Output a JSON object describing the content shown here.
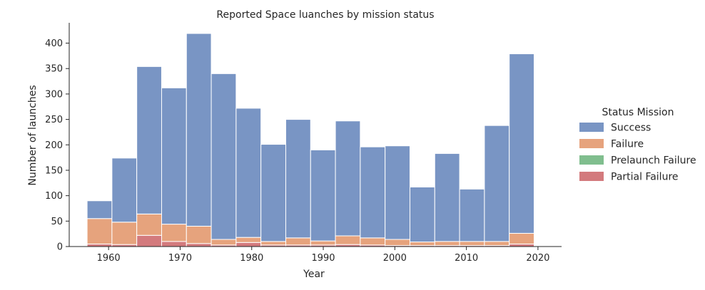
{
  "chart_data": {
    "type": "bar",
    "stacked": true,
    "title": "Reported Space luanches by mission status",
    "xlabel": "Year",
    "ylabel": "Number of launches",
    "xlim": [
      1954.5,
      2023.3
    ],
    "ylim": [
      0,
      440
    ],
    "x_ticks": [
      1960,
      1970,
      1980,
      1990,
      2000,
      2010,
      2020
    ],
    "y_ticks": [
      0,
      50,
      100,
      150,
      200,
      250,
      300,
      350,
      400
    ],
    "bin_edges": [
      1957,
      1960.47,
      1963.94,
      1967.41,
      1970.88,
      1974.35,
      1977.82,
      1981.29,
      1984.76,
      1988.23,
      1991.7,
      1995.17,
      1998.64,
      2002.11,
      2005.58,
      2009.05,
      2012.52,
      2015.99,
      2019.46
    ],
    "grid": false,
    "legend": {
      "title": "Status Mission",
      "placement": "right"
    },
    "series": [
      {
        "name": "Partial Failure",
        "color": "#c44e52",
        "values": [
          5,
          4,
          22,
          10,
          6,
          3,
          8,
          3,
          3,
          3,
          4,
          3,
          2,
          2,
          2,
          2,
          2,
          5
        ]
      },
      {
        "name": "Prelaunch Failure",
        "color": "#55a868",
        "values": [
          0,
          0,
          0,
          0,
          0,
          0,
          0,
          0,
          0,
          0,
          0,
          0,
          0,
          0,
          0,
          0,
          0,
          0
        ]
      },
      {
        "name": "Failure",
        "color": "#dd8452",
        "values": [
          50,
          44,
          42,
          34,
          34,
          11,
          10,
          7,
          14,
          8,
          17,
          14,
          12,
          7,
          8,
          8,
          8,
          21
        ]
      },
      {
        "name": "Success",
        "color": "#4c72b0",
        "values": [
          35,
          126,
          290,
          268,
          379,
          326,
          254,
          191,
          233,
          179,
          226,
          179,
          184,
          108,
          173,
          103,
          228,
          353
        ]
      }
    ],
    "legend_order": [
      "Success",
      "Failure",
      "Prelaunch Failure",
      "Partial Failure"
    ]
  }
}
